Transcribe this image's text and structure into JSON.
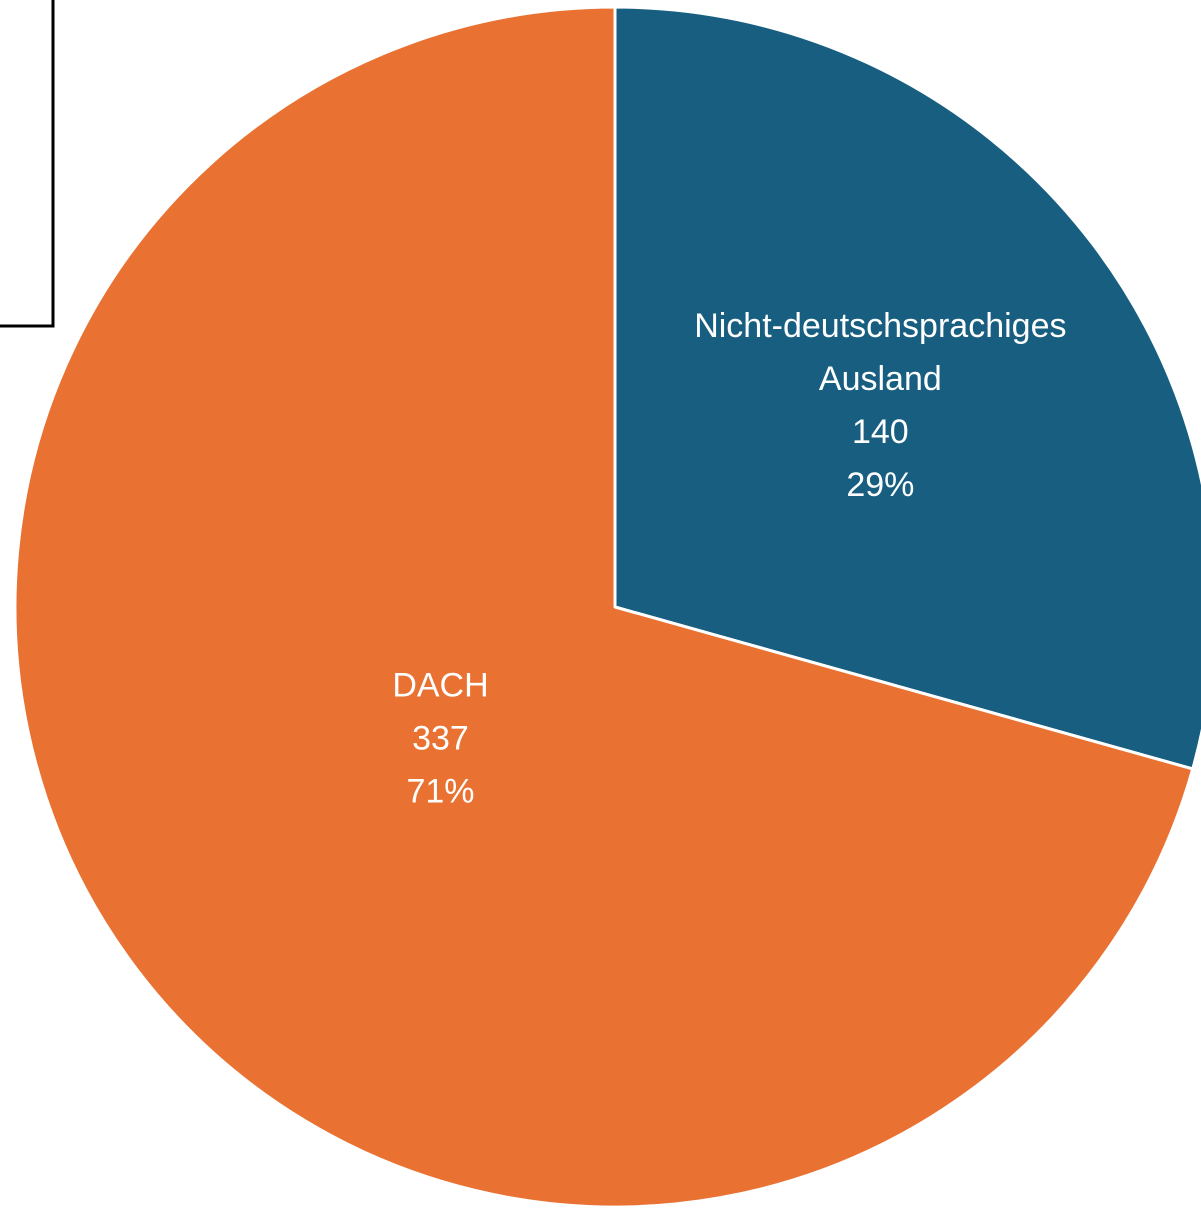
{
  "chart_data": {
    "type": "pie",
    "categories": [
      "Nicht-deutschsprachiges Ausland",
      "DACH"
    ],
    "values": [
      140,
      337
    ],
    "percent_labels": [
      "29%",
      "71%"
    ],
    "colors": [
      "#175e80",
      "#e97132"
    ]
  }
}
